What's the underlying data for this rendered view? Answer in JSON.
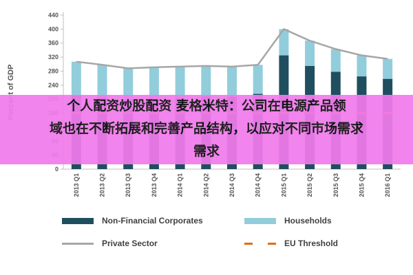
{
  "chart_data": {
    "type": "bar",
    "stacked": true,
    "title": "",
    "xlabel": "",
    "ylabel": "Percent of GDP",
    "ylim": [
      0,
      440
    ],
    "yticks": [
      0,
      40,
      80,
      120,
      160,
      200,
      240,
      280,
      320,
      360,
      400,
      440
    ],
    "categories": [
      "2013 Q1",
      "2013 Q2",
      "2013 Q3",
      "2013 Q4",
      "2014 Q1",
      "2014 Q2",
      "2014 Q3",
      "2014 Q4",
      "2015 Q1",
      "2015 Q2",
      "2015 Q3",
      "2015 Q4",
      "2016 Q1"
    ],
    "series": [
      {
        "name": "Non-Financial Corporates",
        "kind": "bar",
        "color": "#1f4e5f",
        "values": [
          210,
          205,
          198,
          200,
          203,
          208,
          207,
          215,
          325,
          295,
          278,
          265,
          258
        ]
      },
      {
        "name": "Households",
        "kind": "bar",
        "color": "#92cddc",
        "values": [
          97,
          93,
          90,
          91,
          90,
          87,
          86,
          83,
          75,
          72,
          65,
          60,
          57
        ]
      },
      {
        "name": "Private Sector",
        "kind": "line",
        "color": "#a6a6a6",
        "values": [
          307,
          298,
          288,
          291,
          293,
          295,
          293,
          298,
          400,
          367,
          343,
          325,
          315
        ]
      },
      {
        "name": "EU Threshold",
        "kind": "dashed-line",
        "color": "#e36c0a",
        "values": [
          160,
          160,
          160,
          160,
          160,
          160,
          160,
          160,
          160,
          160,
          160,
          160,
          160
        ]
      }
    ],
    "legend_position": "bottom",
    "grid": false
  },
  "overlay": {
    "line1": "个人配资炒股配资 麦格米特：公司在电源产品领",
    "line2": "域也在不断拓展和完善产品结构，以应对不同市场需求",
    "line3": "需求"
  }
}
